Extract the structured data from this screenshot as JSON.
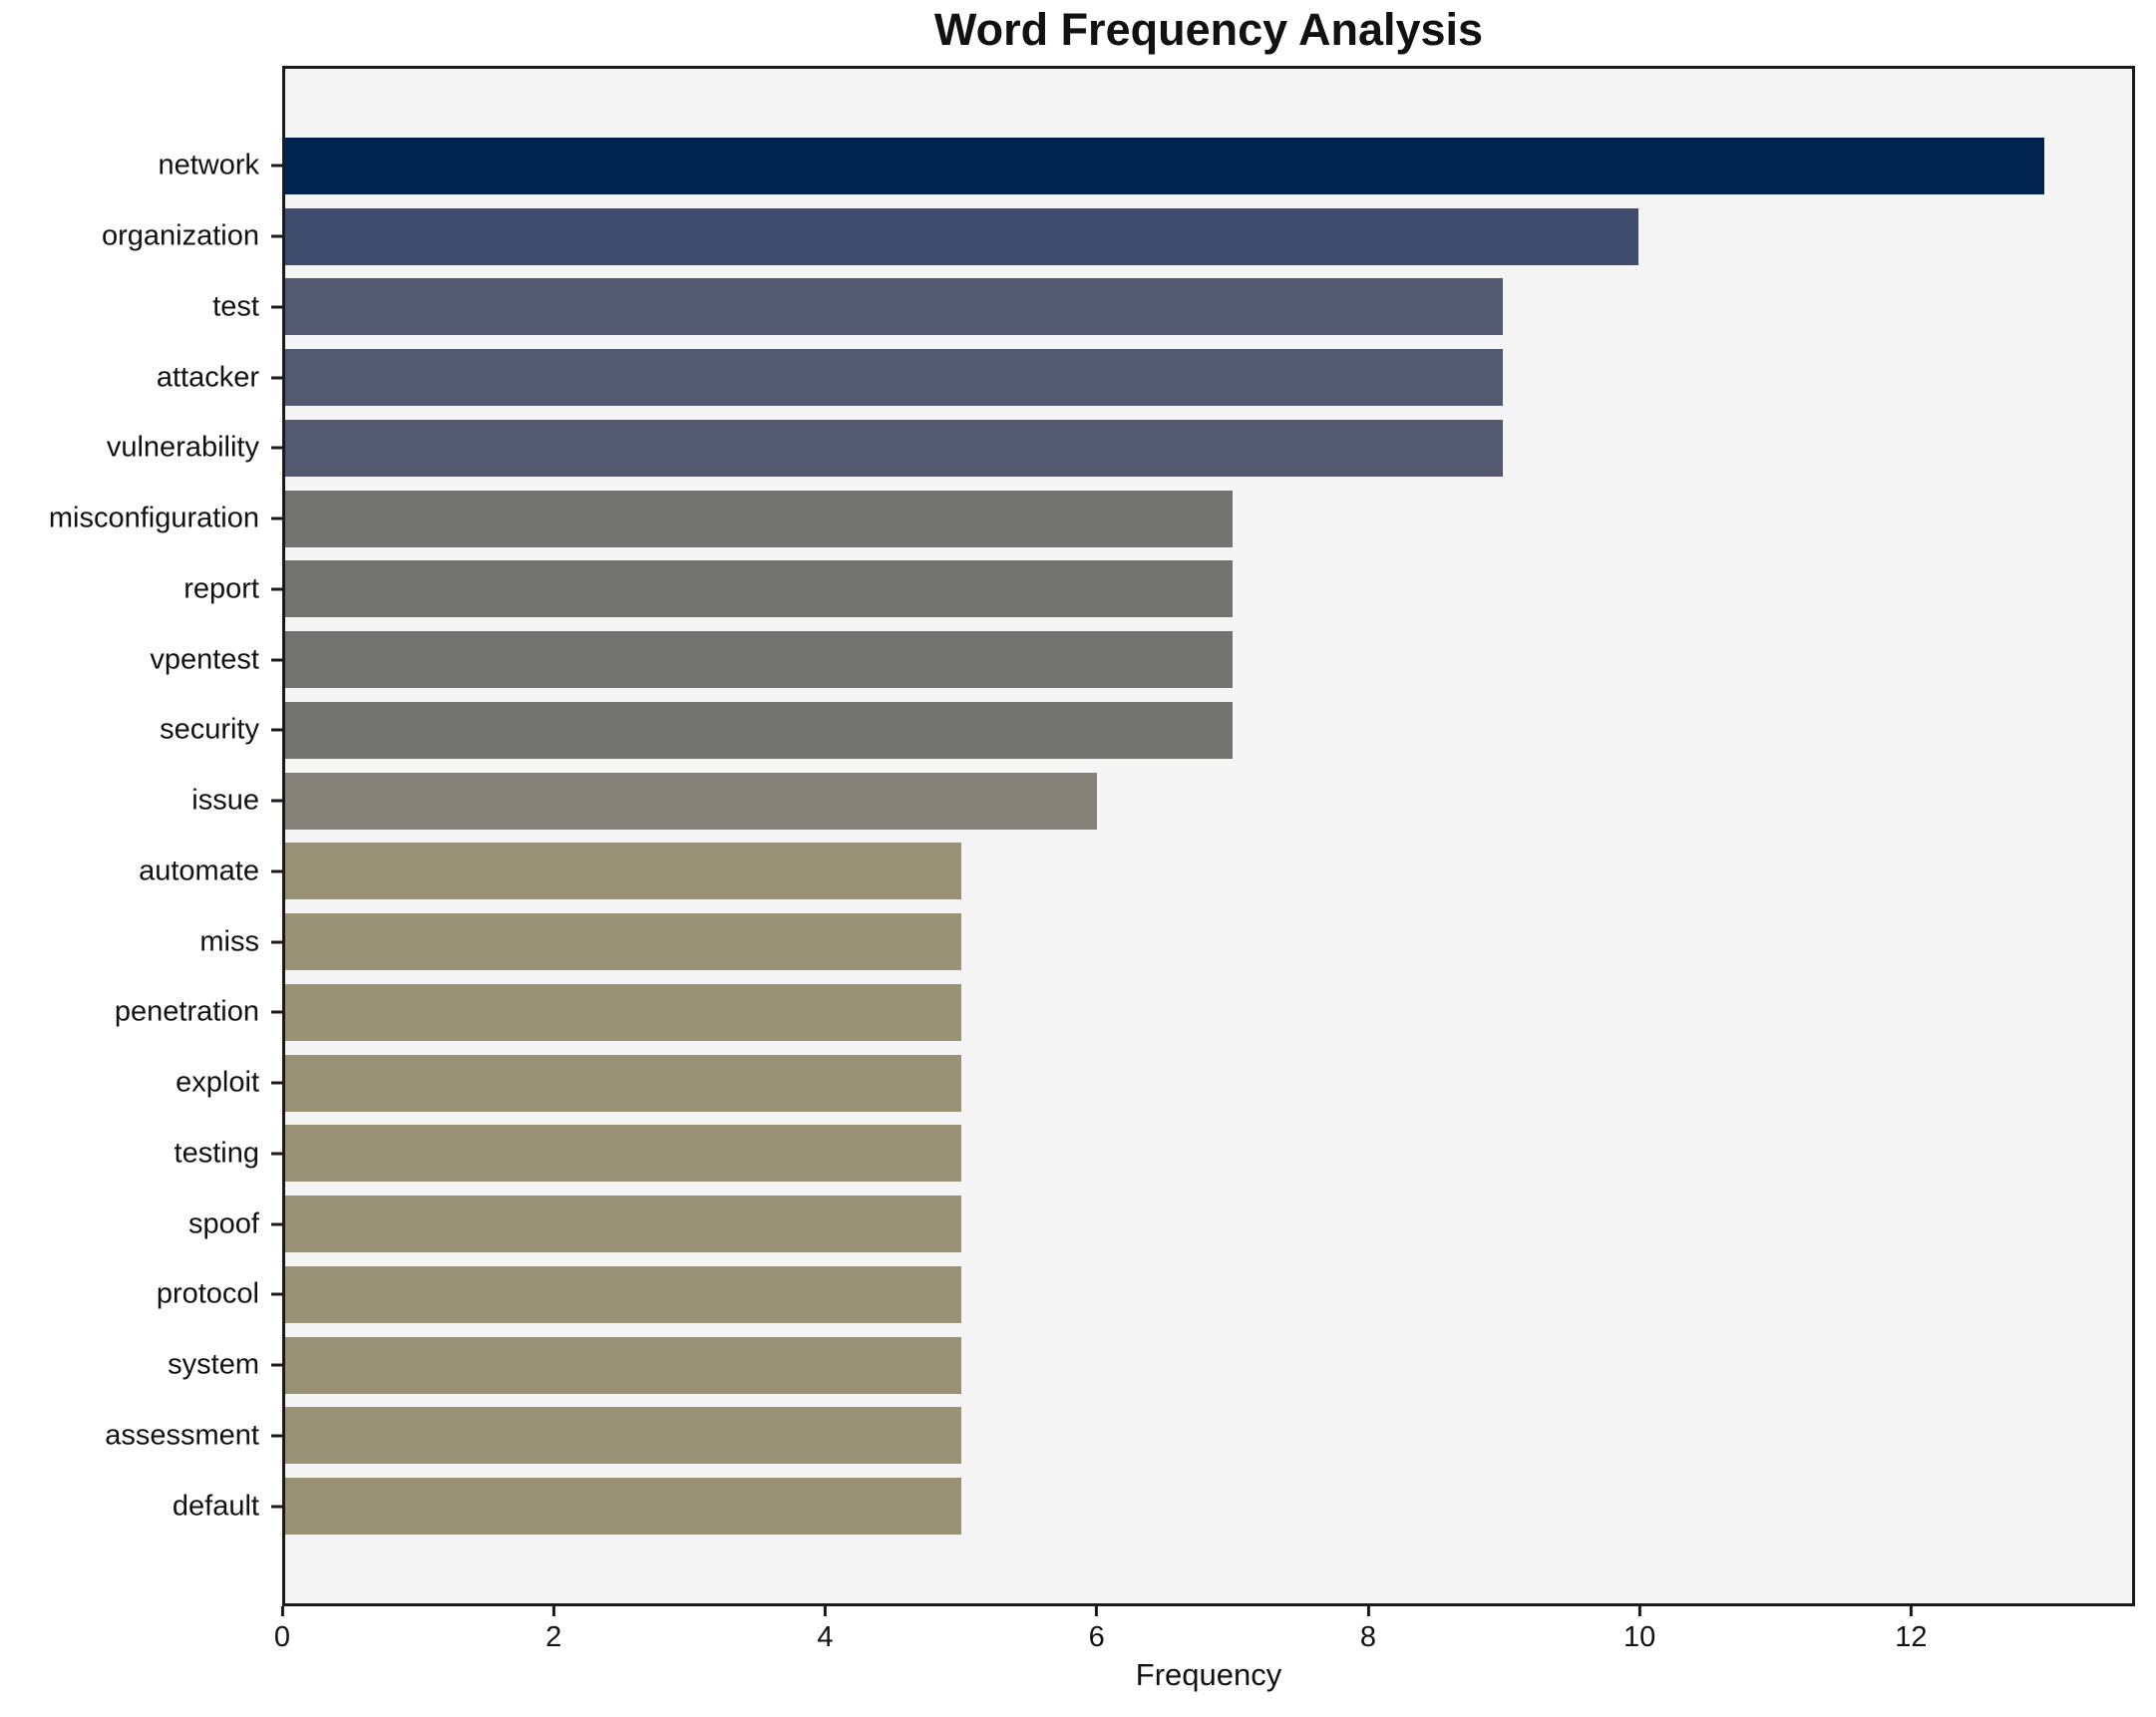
{
  "chart_data": {
    "type": "bar",
    "orientation": "horizontal",
    "title": "Word Frequency Analysis",
    "xlabel": "Frequency",
    "ylabel": "",
    "categories": [
      "network",
      "organization",
      "test",
      "attacker",
      "vulnerability",
      "misconfiguration",
      "report",
      "vpentest",
      "security",
      "issue",
      "automate",
      "miss",
      "penetration",
      "exploit",
      "testing",
      "spoof",
      "protocol",
      "system",
      "assessment",
      "default"
    ],
    "values": [
      13,
      10,
      9,
      9,
      9,
      7,
      7,
      7,
      7,
      6,
      5,
      5,
      5,
      5,
      5,
      5,
      5,
      5,
      5,
      5
    ],
    "bar_colors": [
      "#002350",
      "#3f4c6e",
      "#535a70",
      "#535a70",
      "#535a70",
      "#727270",
      "#727270",
      "#727270",
      "#727270",
      "#85827a",
      "#999277",
      "#999277",
      "#999277",
      "#999277",
      "#999277",
      "#999277",
      "#999277",
      "#999277",
      "#999277",
      "#999277"
    ],
    "xlim": [
      0,
      13.65
    ],
    "xticks": [
      0,
      2,
      4,
      6,
      8,
      10,
      12
    ],
    "grid": false,
    "legend": "none",
    "plot_background": "#f5f5f6",
    "figure_background": "#ffffff",
    "spine_color": "#1a1a1a"
  }
}
